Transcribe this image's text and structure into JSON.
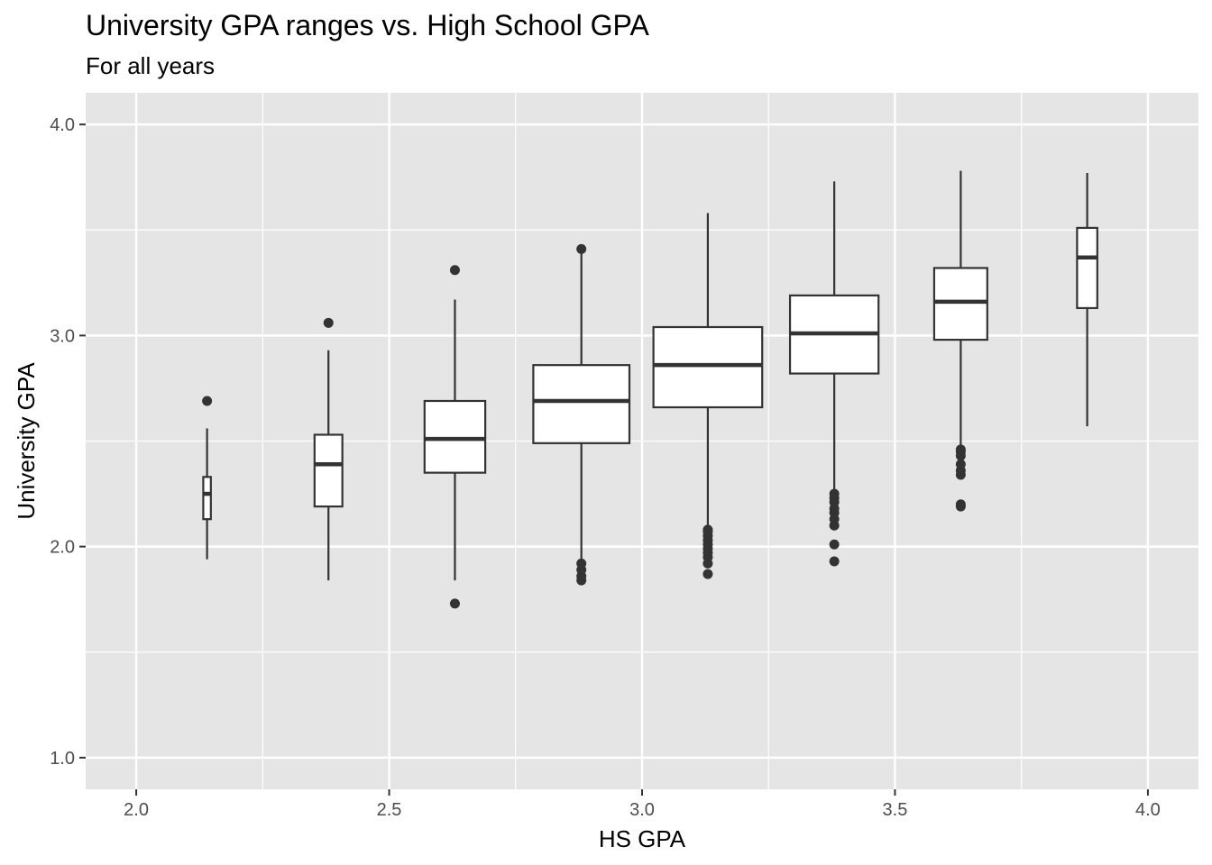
{
  "chart_data": {
    "type": "boxplot",
    "title": "University GPA ranges vs. High School GPA",
    "subtitle": "For all years",
    "xlabel": "HS GPA",
    "ylabel": "University GPA",
    "xlim": [
      1.9,
      4.1
    ],
    "ylim": [
      0.85,
      4.15
    ],
    "xticks": [
      {
        "value": 2.0,
        "label": "2.0"
      },
      {
        "value": 2.5,
        "label": "2.5"
      },
      {
        "value": 3.0,
        "label": "3.0"
      },
      {
        "value": 3.5,
        "label": "3.5"
      },
      {
        "value": 4.0,
        "label": "4.0"
      }
    ],
    "yticks": [
      {
        "value": 1.0,
        "label": "1.0"
      },
      {
        "value": 2.0,
        "label": "2.0"
      },
      {
        "value": 3.0,
        "label": "3.0"
      },
      {
        "value": 4.0,
        "label": "4.0"
      }
    ],
    "grid": true,
    "panel_color": "#e5e5e5",
    "box_fill": "#ffffff",
    "line_color": "#333333",
    "boxes": [
      {
        "x": 2.14,
        "width": 0.015,
        "whisker_low": 1.94,
        "q1": 2.13,
        "median": 2.25,
        "q3": 2.33,
        "whisker_high": 2.56,
        "outliers": [
          2.69
        ]
      },
      {
        "x": 2.38,
        "width": 0.055,
        "whisker_low": 1.84,
        "q1": 2.19,
        "median": 2.39,
        "q3": 2.53,
        "whisker_high": 2.93,
        "outliers": [
          3.06
        ]
      },
      {
        "x": 2.63,
        "width": 0.12,
        "whisker_low": 1.84,
        "q1": 2.35,
        "median": 2.51,
        "q3": 2.69,
        "whisker_high": 3.17,
        "outliers": [
          1.73,
          3.31
        ]
      },
      {
        "x": 2.88,
        "width": 0.19,
        "whisker_low": 1.94,
        "q1": 2.49,
        "median": 2.69,
        "q3": 2.86,
        "whisker_high": 3.41,
        "outliers": [
          1.84,
          1.86,
          1.89,
          1.92,
          3.41
        ]
      },
      {
        "x": 3.13,
        "width": 0.215,
        "whisker_low": 2.09,
        "q1": 2.66,
        "median": 2.86,
        "q3": 3.04,
        "whisker_high": 3.58,
        "outliers": [
          1.87,
          1.92,
          1.95,
          1.97,
          1.99,
          2.01,
          2.03,
          2.05,
          2.07,
          2.08
        ]
      },
      {
        "x": 3.38,
        "width": 0.175,
        "whisker_low": 2.26,
        "q1": 2.82,
        "median": 3.01,
        "q3": 3.19,
        "whisker_high": 3.73,
        "outliers": [
          1.93,
          2.01,
          2.1,
          2.13,
          2.16,
          2.18,
          2.21,
          2.23,
          2.25
        ]
      },
      {
        "x": 3.63,
        "width": 0.105,
        "whisker_low": 2.47,
        "q1": 2.98,
        "median": 3.16,
        "q3": 3.32,
        "whisker_high": 3.78,
        "outliers": [
          2.19,
          2.2,
          2.34,
          2.36,
          2.39,
          2.43,
          2.45,
          2.46
        ]
      },
      {
        "x": 3.88,
        "width": 0.04,
        "whisker_low": 2.57,
        "q1": 3.13,
        "median": 3.37,
        "q3": 3.51,
        "whisker_high": 3.77,
        "outliers": []
      }
    ]
  }
}
